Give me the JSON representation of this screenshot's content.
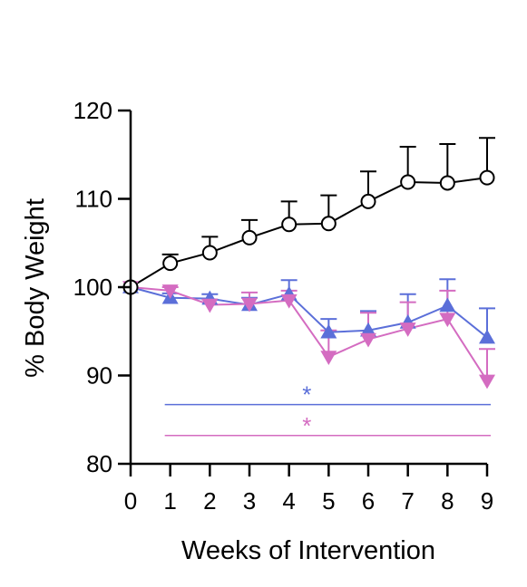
{
  "chart_data": {
    "type": "line",
    "title": "",
    "xlabel": "Weeks of Intervention",
    "ylabel": "% Body Weight",
    "xlim": [
      0,
      9
    ],
    "ylim": [
      80,
      120
    ],
    "x_ticks": [
      0,
      1,
      2,
      3,
      4,
      5,
      6,
      7,
      8,
      9
    ],
    "y_ticks": [
      80,
      90,
      100,
      110,
      120
    ],
    "x_tick_labels": [
      "0",
      "1",
      "2",
      "3",
      "4",
      "5",
      "6",
      "7",
      "8",
      "9"
    ],
    "y_tick_labels": [
      "80",
      "90",
      "100",
      "110",
      "120"
    ],
    "grid": false,
    "legend": "none",
    "series": [
      {
        "color": "#000000",
        "marker": "open-circle",
        "x": [
          0,
          1,
          2,
          3,
          4,
          5,
          6,
          7,
          8,
          9
        ],
        "values": [
          100,
          102.7,
          103.9,
          105.6,
          107.1,
          107.2,
          109.7,
          111.9,
          111.8,
          112.4
        ],
        "error": [
          0,
          1.0,
          1.8,
          2.0,
          2.6,
          3.2,
          3.4,
          4.0,
          4.4,
          4.5
        ]
      },
      {
        "color": "#5b6fd9",
        "marker": "filled-triangle-up",
        "x": [
          0,
          1,
          2,
          3,
          4,
          5,
          6,
          7,
          8,
          9
        ],
        "values": [
          100,
          98.8,
          98.7,
          98.0,
          99.2,
          94.9,
          95.1,
          96.0,
          97.9,
          94.3
        ],
        "error": [
          0,
          0.5,
          0.5,
          0.8,
          1.6,
          1.5,
          2.2,
          3.2,
          3.0,
          3.3
        ]
      },
      {
        "color": "#d46cc1",
        "marker": "filled-triangle-down",
        "x": [
          0,
          1,
          2,
          3,
          4,
          5,
          6,
          7,
          8,
          9
        ],
        "values": [
          100,
          99.6,
          98.0,
          98.1,
          98.5,
          92.1,
          94.1,
          95.3,
          96.4,
          89.4
        ],
        "error": [
          0,
          0.4,
          0.6,
          1.3,
          1.1,
          3.0,
          3.0,
          3.0,
          3.2,
          3.6
        ]
      }
    ],
    "annotations": [
      {
        "text": "*",
        "color": "#5b6fd9",
        "y": 86.7,
        "x_start": 1,
        "x_end": 9,
        "text_x": 4.45
      },
      {
        "text": "*",
        "color": "#d46cc1",
        "y": 83.2,
        "x_start": 1,
        "x_end": 9,
        "text_x": 4.45
      }
    ]
  }
}
